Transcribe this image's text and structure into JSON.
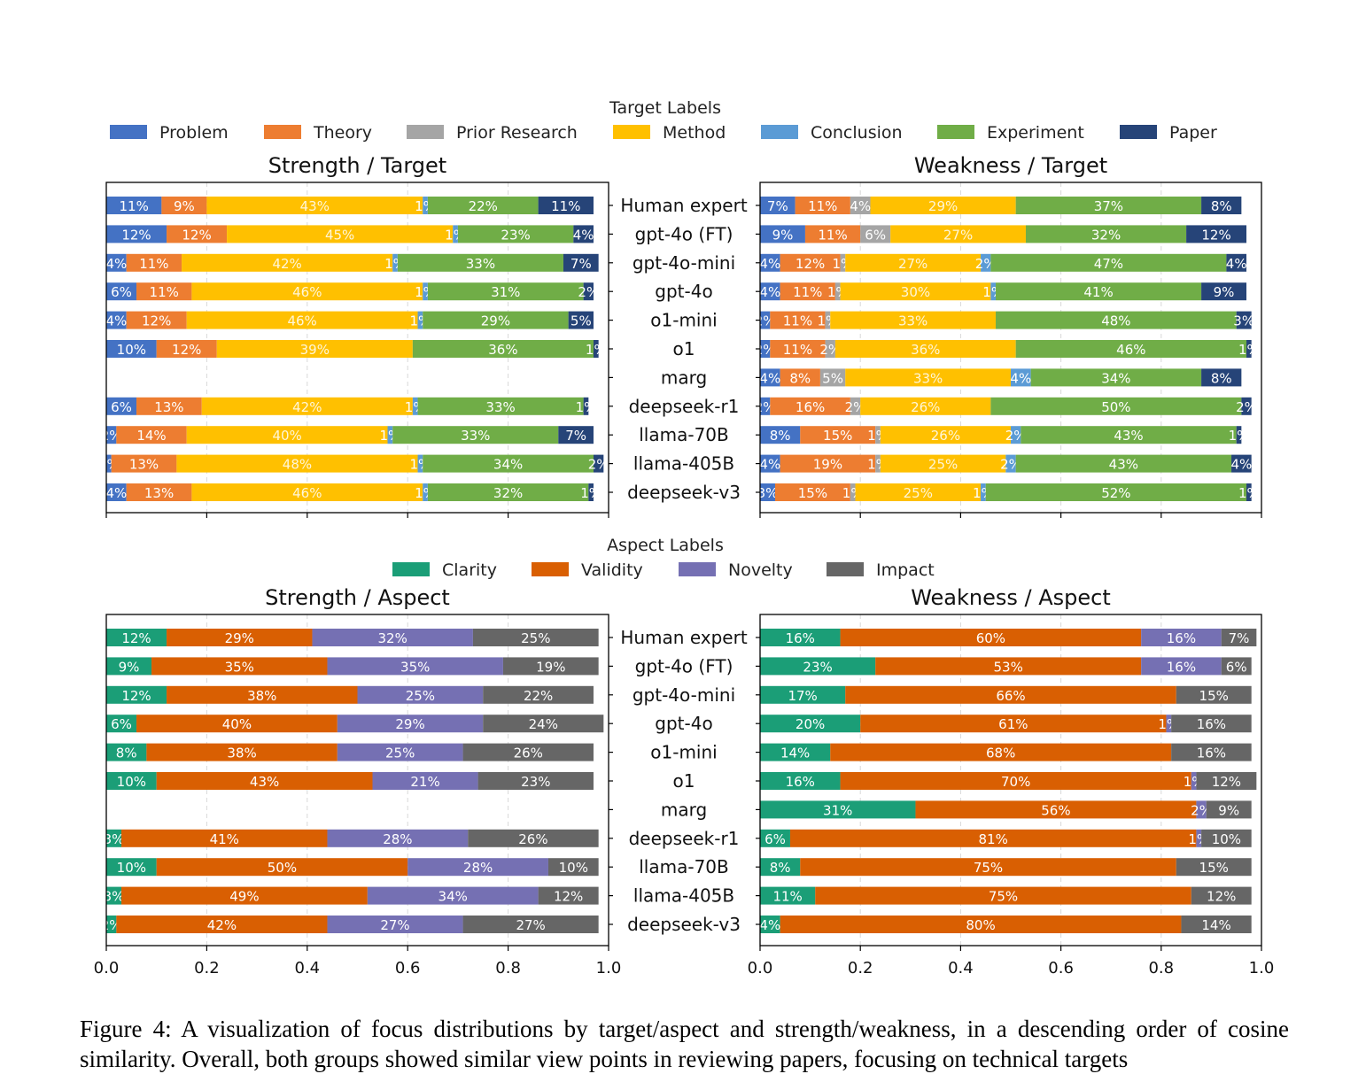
{
  "chart_data": [
    {
      "type": "bar",
      "orientation": "horizontal-stacked",
      "title": "Strength / Target",
      "legend_title": "Target Labels",
      "legend_position": "top",
      "xlim": [
        0,
        1.0
      ],
      "xticks": [
        "0.0",
        "0.2",
        "0.4",
        "0.6",
        "0.8",
        "1.0"
      ],
      "grid": "vertical dashed",
      "categories": [
        "Human expert",
        "gpt-4o (FT)",
        "gpt-4o-mini",
        "gpt-4o",
        "o1-mini",
        "o1",
        "marg",
        "deepseek-r1",
        "llama-70B",
        "llama-405B",
        "deepseek-v3"
      ],
      "series": [
        {
          "name": "Problem",
          "values": [
            0.11,
            0.12,
            0.04,
            0.06,
            0.04,
            0.1,
            0,
            0.06,
            0.02,
            0.01,
            0.04
          ]
        },
        {
          "name": "Theory",
          "values": [
            0.09,
            0.12,
            0.11,
            0.11,
            0.12,
            0.12,
            0,
            0.13,
            0.14,
            0.13,
            0.13
          ]
        },
        {
          "name": "Prior Research",
          "values": [
            0,
            0,
            0,
            0,
            0,
            0,
            0,
            0,
            0,
            0,
            0
          ]
        },
        {
          "name": "Method",
          "values": [
            0.43,
            0.45,
            0.42,
            0.46,
            0.46,
            0.39,
            0,
            0.42,
            0.4,
            0.48,
            0.46
          ]
        },
        {
          "name": "Conclusion",
          "values": [
            0.01,
            0.01,
            0.01,
            0.01,
            0.01,
            0,
            0,
            0.01,
            0.01,
            0.01,
            0.01
          ]
        },
        {
          "name": "Experiment",
          "values": [
            0.22,
            0.23,
            0.33,
            0.31,
            0.29,
            0.36,
            0,
            0.33,
            0.33,
            0.34,
            0.32
          ]
        },
        {
          "name": "Paper",
          "values": [
            0.11,
            0.04,
            0.07,
            0.02,
            0.05,
            0.01,
            0,
            0.01,
            0.07,
            0.02,
            0.01
          ]
        }
      ]
    },
    {
      "type": "bar",
      "orientation": "horizontal-stacked",
      "title": "Weakness / Target",
      "xlim": [
        0,
        1.0
      ],
      "xticks": [
        "0.0",
        "0.2",
        "0.4",
        "0.6",
        "0.8",
        "1.0"
      ],
      "grid": "vertical dashed",
      "categories": [
        "Human expert",
        "gpt-4o (FT)",
        "gpt-4o-mini",
        "gpt-4o",
        "o1-mini",
        "o1",
        "marg",
        "deepseek-r1",
        "llama-70B",
        "llama-405B",
        "deepseek-v3"
      ],
      "series": [
        {
          "name": "Problem",
          "values": [
            0.07,
            0.09,
            0.04,
            0.04,
            0.02,
            0.02,
            0.04,
            0.02,
            0.08,
            0.04,
            0.03
          ]
        },
        {
          "name": "Theory",
          "values": [
            0.11,
            0.11,
            0.12,
            0.11,
            0.11,
            0.11,
            0.08,
            0.16,
            0.15,
            0.19,
            0.15
          ]
        },
        {
          "name": "Prior Research",
          "values": [
            0.04,
            0.06,
            0.01,
            0.01,
            0.01,
            0.02,
            0.05,
            0.02,
            0.01,
            0.01,
            0.01
          ]
        },
        {
          "name": "Method",
          "values": [
            0.29,
            0.27,
            0.27,
            0.3,
            0.33,
            0.36,
            0.33,
            0.26,
            0.26,
            0.25,
            0.25
          ]
        },
        {
          "name": "Conclusion",
          "values": [
            0,
            0,
            0.02,
            0.01,
            0,
            0,
            0.04,
            0,
            0.02,
            0.02,
            0.01
          ]
        },
        {
          "name": "Experiment",
          "values": [
            0.37,
            0.32,
            0.47,
            0.41,
            0.48,
            0.46,
            0.34,
            0.5,
            0.43,
            0.43,
            0.52
          ]
        },
        {
          "name": "Paper",
          "values": [
            0.08,
            0.12,
            0.04,
            0.09,
            0.03,
            0.01,
            0.08,
            0.02,
            0.01,
            0.04,
            0.01
          ]
        }
      ]
    },
    {
      "type": "bar",
      "orientation": "horizontal-stacked",
      "title": "Strength / Aspect",
      "legend_title": "Aspect Labels",
      "legend_position": "top",
      "xlim": [
        0,
        1.0
      ],
      "xticks": [
        "0.0",
        "0.2",
        "0.4",
        "0.6",
        "0.8",
        "1.0"
      ],
      "grid": "vertical dashed",
      "categories": [
        "Human expert",
        "gpt-4o (FT)",
        "gpt-4o-mini",
        "gpt-4o",
        "o1-mini",
        "o1",
        "marg",
        "deepseek-r1",
        "llama-70B",
        "llama-405B",
        "deepseek-v3"
      ],
      "series": [
        {
          "name": "Clarity",
          "values": [
            0.12,
            0.09,
            0.12,
            0.06,
            0.08,
            0.1,
            0,
            0.03,
            0.1,
            0.03,
            0.02
          ]
        },
        {
          "name": "Validity",
          "values": [
            0.29,
            0.35,
            0.38,
            0.4,
            0.38,
            0.43,
            0,
            0.41,
            0.5,
            0.49,
            0.42
          ]
        },
        {
          "name": "Novelty",
          "values": [
            0.32,
            0.35,
            0.25,
            0.29,
            0.25,
            0.21,
            0,
            0.28,
            0.28,
            0.34,
            0.27
          ]
        },
        {
          "name": "Impact",
          "values": [
            0.25,
            0.19,
            0.22,
            0.24,
            0.26,
            0.23,
            0,
            0.26,
            0.1,
            0.12,
            0.27
          ]
        }
      ]
    },
    {
      "type": "bar",
      "orientation": "horizontal-stacked",
      "title": "Weakness / Aspect",
      "xlim": [
        0,
        1.0
      ],
      "xticks": [
        "0.0",
        "0.2",
        "0.4",
        "0.6",
        "0.8",
        "1.0"
      ],
      "grid": "vertical dashed",
      "categories": [
        "Human expert",
        "gpt-4o (FT)",
        "gpt-4o-mini",
        "gpt-4o",
        "o1-mini",
        "o1",
        "marg",
        "deepseek-r1",
        "llama-70B",
        "llama-405B",
        "deepseek-v3"
      ],
      "series": [
        {
          "name": "Clarity",
          "values": [
            0.16,
            0.23,
            0.17,
            0.2,
            0.14,
            0.16,
            0.31,
            0.06,
            0.08,
            0.11,
            0.04
          ]
        },
        {
          "name": "Validity",
          "values": [
            0.6,
            0.53,
            0.66,
            0.61,
            0.68,
            0.7,
            0.56,
            0.81,
            0.75,
            0.75,
            0.8
          ]
        },
        {
          "name": "Novelty",
          "values": [
            0.16,
            0.16,
            0,
            0.01,
            0,
            0.01,
            0.02,
            0.01,
            0,
            0,
            0
          ]
        },
        {
          "name": "Impact",
          "values": [
            0.07,
            0.06,
            0.15,
            0.16,
            0.16,
            0.12,
            0.09,
            0.1,
            0.15,
            0.12,
            0.14
          ]
        }
      ]
    }
  ],
  "legends": {
    "target": {
      "title": "Target Labels",
      "items": [
        {
          "label": "Problem",
          "color": "#4472C4"
        },
        {
          "label": "Theory",
          "color": "#ED7D31"
        },
        {
          "label": "Prior Research",
          "color": "#A5A5A5"
        },
        {
          "label": "Method",
          "color": "#FFC000"
        },
        {
          "label": "Conclusion",
          "color": "#5B9BD5"
        },
        {
          "label": "Experiment",
          "color": "#70AD47"
        },
        {
          "label": "Paper",
          "color": "#264478"
        }
      ]
    },
    "aspect": {
      "title": "Aspect Labels",
      "items": [
        {
          "label": "Clarity",
          "color": "#1B9E77"
        },
        {
          "label": "Validity",
          "color": "#D95F02"
        },
        {
          "label": "Novelty",
          "color": "#7570B3"
        },
        {
          "label": "Impact",
          "color": "#666666"
        }
      ]
    }
  },
  "caption": "Figure 4: A visualization of focus distributions by target/aspect and strength/weakness, in a descending order of cosine similarity. Overall, both groups showed similar view points in reviewing papers, focusing on technical targets"
}
